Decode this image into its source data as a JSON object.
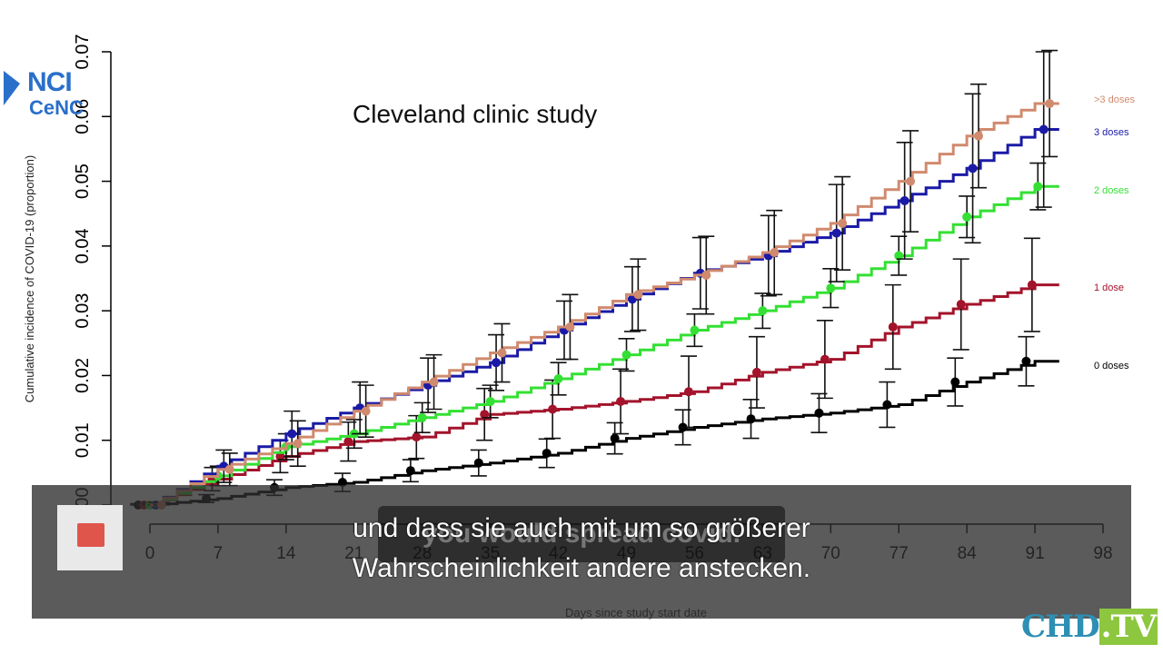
{
  "chart_data": {
    "type": "line",
    "title": "Cleveland clinic study",
    "xlabel": "Days since study start date",
    "ylabel": "Cumulative incidence of COVID-19 (proportion)",
    "xlim": [
      0,
      98
    ],
    "ylim": [
      0,
      0.07
    ],
    "xticks": [
      0,
      7,
      14,
      21,
      28,
      35,
      42,
      49,
      56,
      63,
      70,
      77,
      84,
      91,
      98
    ],
    "yticks": [
      0,
      0.01,
      0.02,
      0.03,
      0.04,
      0.05,
      0.06,
      0.07
    ],
    "xtick_labels": [
      "0",
      "7",
      "14",
      "21",
      "28",
      "35",
      "42",
      "49",
      "56",
      "63",
      "70",
      "77",
      "84",
      "91",
      "98"
    ],
    "ytick_labels": [
      "0.00",
      "0.01",
      "0.02",
      "0.03",
      "0.04",
      "0.05",
      "0.06",
      "0.07"
    ],
    "grid": false,
    "series": [
      {
        "name": "0 doses",
        "color": "#000000",
        "x": [
          0,
          7,
          14,
          21,
          28,
          35,
          42,
          49,
          56,
          63,
          70,
          77,
          84,
          91
        ],
        "y": [
          0.0,
          0.001,
          0.0027,
          0.0035,
          0.0053,
          0.0065,
          0.008,
          0.0103,
          0.012,
          0.0133,
          0.0142,
          0.0155,
          0.019,
          0.0222
        ],
        "err": [
          0.0002,
          0.0006,
          0.0012,
          0.0014,
          0.0017,
          0.002,
          0.0022,
          0.0024,
          0.0027,
          0.003,
          0.003,
          0.0035,
          0.0037,
          0.0038
        ]
      },
      {
        "name": "1 dose",
        "color": "#a3132b",
        "x": [
          0,
          7,
          14,
          21,
          28,
          35,
          42,
          49,
          56,
          63,
          70,
          77,
          84,
          91
        ],
        "y": [
          0.0,
          0.004,
          0.0075,
          0.0098,
          0.0105,
          0.014,
          0.0148,
          0.016,
          0.0175,
          0.0205,
          0.0225,
          0.0275,
          0.031,
          0.034
        ],
        "err": [
          0.0003,
          0.0018,
          0.0025,
          0.003,
          0.0033,
          0.004,
          0.0045,
          0.005,
          0.0055,
          0.0055,
          0.006,
          0.0065,
          0.007,
          0.0072
        ]
      },
      {
        "name": "2 doses",
        "color": "#33e033",
        "x": [
          0,
          7,
          14,
          21,
          28,
          35,
          42,
          49,
          56,
          63,
          70,
          77,
          84,
          91
        ],
        "y": [
          0.0,
          0.0045,
          0.009,
          0.011,
          0.0135,
          0.016,
          0.0195,
          0.0232,
          0.027,
          0.03,
          0.0335,
          0.0385,
          0.0445,
          0.0492
        ],
        "err": [
          0.0003,
          0.0015,
          0.002,
          0.0022,
          0.0023,
          0.0025,
          0.0025,
          0.0025,
          0.0025,
          0.0027,
          0.003,
          0.003,
          0.0032,
          0.0036
        ]
      },
      {
        "name": "3 doses",
        "color": "#1a1aa6",
        "x": [
          0,
          7,
          14,
          21,
          28,
          35,
          42,
          49,
          56,
          63,
          70,
          77,
          84,
          91
        ],
        "y": [
          0.0,
          0.006,
          0.011,
          0.015,
          0.0185,
          0.022,
          0.027,
          0.0318,
          0.0358,
          0.0385,
          0.042,
          0.047,
          0.052,
          0.058
        ],
        "err": [
          0.0004,
          0.0025,
          0.0035,
          0.004,
          0.0042,
          0.0043,
          0.0045,
          0.005,
          0.0055,
          0.0062,
          0.0075,
          0.009,
          0.0115,
          0.012
        ]
      },
      {
        "name": ">3 doses",
        "color": "#d08a6e",
        "x": [
          0,
          7,
          14,
          21,
          28,
          35,
          42,
          49,
          56,
          63,
          70,
          77,
          84,
          91
        ],
        "y": [
          0.0,
          0.0055,
          0.0095,
          0.0145,
          0.019,
          0.0235,
          0.0275,
          0.0325,
          0.0355,
          0.039,
          0.0435,
          0.05,
          0.057,
          0.062
        ],
        "err": [
          0.0004,
          0.0025,
          0.0035,
          0.004,
          0.0042,
          0.0045,
          0.005,
          0.0055,
          0.006,
          0.0065,
          0.0072,
          0.0078,
          0.008,
          0.0082
        ]
      }
    ]
  },
  "overlay": {
    "logo_nci": "NCI",
    "logo_cenc": "CeNC",
    "subtitle_line1": "und dass sie auch mit um so größerer",
    "subtitle_line2": "Wahrscheinlichkeit andere anstecken.",
    "burned_caption": "you would spread covid.",
    "channel_logo_a": "CHD",
    "channel_logo_b": ".TV"
  }
}
